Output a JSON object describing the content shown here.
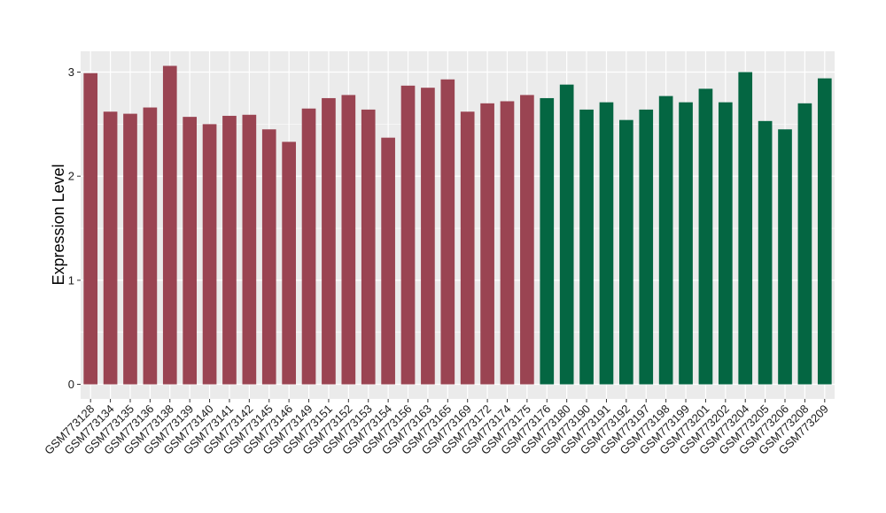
{
  "chart_data": {
    "type": "bar",
    "title": "",
    "xlabel": "",
    "ylabel": "Expression Level",
    "ylim": [
      -0.14,
      3.2
    ],
    "yticks": [
      0,
      1,
      2,
      3
    ],
    "grid": true,
    "legend": "none",
    "categories": [
      "GSM773128",
      "GSM773134",
      "GSM773135",
      "GSM773136",
      "GSM773138",
      "GSM773139",
      "GSM773140",
      "GSM773141",
      "GSM773142",
      "GSM773145",
      "GSM773146",
      "GSM773149",
      "GSM773151",
      "GSM773152",
      "GSM773153",
      "GSM773154",
      "GSM773156",
      "GSM773163",
      "GSM773165",
      "GSM773169",
      "GSM773172",
      "GSM773174",
      "GSM773175",
      "GSM773176",
      "GSM773180",
      "GSM773190",
      "GSM773191",
      "GSM773192",
      "GSM773197",
      "GSM773198",
      "GSM773199",
      "GSM773201",
      "GSM773202",
      "GSM773204",
      "GSM773205",
      "GSM773206",
      "GSM773208",
      "GSM773209"
    ],
    "values": [
      2.99,
      2.62,
      2.6,
      2.66,
      3.06,
      2.57,
      2.5,
      2.58,
      2.59,
      2.45,
      2.33,
      2.65,
      2.75,
      2.78,
      2.64,
      2.37,
      2.87,
      2.85,
      2.93,
      2.62,
      2.7,
      2.72,
      2.78,
      2.75,
      2.88,
      2.64,
      2.71,
      2.54,
      2.64,
      2.77,
      2.71,
      2.84,
      2.71,
      3.0,
      2.53,
      2.45,
      2.7,
      2.94
    ],
    "groups": [
      0,
      0,
      0,
      0,
      0,
      0,
      0,
      0,
      0,
      0,
      0,
      0,
      0,
      0,
      0,
      0,
      0,
      0,
      0,
      0,
      0,
      0,
      0,
      1,
      1,
      1,
      1,
      1,
      1,
      1,
      1,
      1,
      1,
      1,
      1,
      1,
      1,
      1
    ],
    "colors": {
      "group_0": "#9a4452",
      "group_1": "#046642",
      "panel": "#ebebeb",
      "grid": "#ffffff"
    }
  }
}
